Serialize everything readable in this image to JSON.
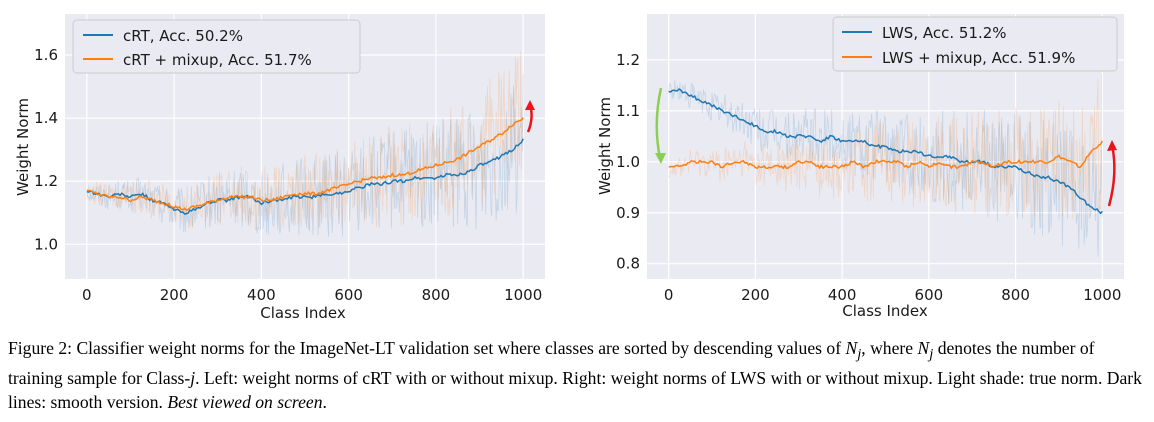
{
  "chart_data": [
    {
      "type": "line",
      "panel": "left",
      "xlabel": "Class Index",
      "ylabel": "Weight Norm",
      "xlim": [
        -50,
        1050
      ],
      "ylim": [
        0.89,
        1.73
      ],
      "xticks": [
        0,
        200,
        400,
        600,
        800,
        1000
      ],
      "xticklabels": [
        "0",
        "200",
        "400",
        "600",
        "800",
        "1000"
      ],
      "yticks": [
        1.0,
        1.2,
        1.4,
        1.6
      ],
      "yticklabels": [
        "1.0",
        "1.2",
        "1.4",
        "1.6"
      ],
      "grid": true,
      "legend": "top-left",
      "series": [
        {
          "name": "cRT, Acc. 50.2%",
          "color": "#1f77b4",
          "x": [
            0,
            25,
            50,
            75,
            100,
            125,
            150,
            175,
            200,
            225,
            250,
            275,
            300,
            325,
            350,
            375,
            400,
            425,
            450,
            475,
            500,
            525,
            550,
            575,
            600,
            625,
            650,
            675,
            700,
            725,
            750,
            775,
            800,
            825,
            850,
            875,
            900,
            925,
            950,
            975,
            1000
          ],
          "values": [
            1.17,
            1.16,
            1.15,
            1.16,
            1.15,
            1.16,
            1.14,
            1.13,
            1.11,
            1.1,
            1.11,
            1.13,
            1.14,
            1.14,
            1.15,
            1.15,
            1.13,
            1.14,
            1.14,
            1.15,
            1.15,
            1.15,
            1.16,
            1.16,
            1.17,
            1.18,
            1.19,
            1.19,
            1.2,
            1.2,
            1.21,
            1.21,
            1.21,
            1.22,
            1.22,
            1.23,
            1.25,
            1.26,
            1.28,
            1.3,
            1.33
          ]
        },
        {
          "name": "cRT  + mixup, Acc. 51.7%",
          "color": "#ff7f0e",
          "x": [
            0,
            25,
            50,
            75,
            100,
            125,
            150,
            175,
            200,
            225,
            250,
            275,
            300,
            325,
            350,
            375,
            400,
            425,
            450,
            475,
            500,
            525,
            550,
            575,
            600,
            625,
            650,
            675,
            700,
            725,
            750,
            775,
            800,
            825,
            850,
            875,
            900,
            925,
            950,
            975,
            1000
          ],
          "values": [
            1.17,
            1.16,
            1.15,
            1.15,
            1.14,
            1.15,
            1.14,
            1.13,
            1.12,
            1.11,
            1.12,
            1.13,
            1.14,
            1.15,
            1.15,
            1.15,
            1.14,
            1.14,
            1.15,
            1.16,
            1.16,
            1.16,
            1.17,
            1.18,
            1.19,
            1.2,
            1.21,
            1.21,
            1.22,
            1.22,
            1.23,
            1.24,
            1.25,
            1.26,
            1.27,
            1.29,
            1.31,
            1.33,
            1.35,
            1.38,
            1.4
          ]
        }
      ]
    },
    {
      "type": "line",
      "panel": "right",
      "xlabel": "Class Index",
      "ylabel": "Weight Norm",
      "xlim": [
        -50,
        1050
      ],
      "ylim": [
        0.77,
        1.29
      ],
      "xticks": [
        0,
        200,
        400,
        600,
        800,
        1000
      ],
      "xticklabels": [
        "0",
        "200",
        "400",
        "600",
        "800",
        "1000"
      ],
      "yticks": [
        0.8,
        0.9,
        1.0,
        1.1,
        1.2
      ],
      "yticklabels": [
        "0.8",
        "0.9",
        "1.0",
        "1.1",
        "1.2"
      ],
      "grid": true,
      "legend": "top-right",
      "series": [
        {
          "name": "LWS, Acc. 51.2%",
          "color": "#1f77b4",
          "x": [
            0,
            25,
            50,
            75,
            100,
            125,
            150,
            175,
            200,
            225,
            250,
            275,
            300,
            325,
            350,
            375,
            400,
            425,
            450,
            475,
            500,
            525,
            550,
            575,
            600,
            625,
            650,
            675,
            700,
            725,
            750,
            775,
            800,
            825,
            850,
            875,
            900,
            925,
            950,
            975,
            1000
          ],
          "values": [
            1.14,
            1.14,
            1.13,
            1.12,
            1.11,
            1.1,
            1.09,
            1.08,
            1.07,
            1.06,
            1.06,
            1.05,
            1.05,
            1.05,
            1.04,
            1.05,
            1.04,
            1.04,
            1.04,
            1.03,
            1.03,
            1.02,
            1.02,
            1.02,
            1.01,
            1.01,
            1.01,
            1.0,
            1.0,
            1.0,
            0.99,
            0.99,
            0.99,
            0.98,
            0.97,
            0.97,
            0.96,
            0.95,
            0.93,
            0.91,
            0.9
          ]
        },
        {
          "name": "LWS + mixup, Acc. 51.9%",
          "color": "#ff7f0e",
          "x": [
            0,
            25,
            50,
            75,
            100,
            125,
            150,
            175,
            200,
            225,
            250,
            275,
            300,
            325,
            350,
            375,
            400,
            425,
            450,
            475,
            500,
            525,
            550,
            575,
            600,
            625,
            650,
            675,
            700,
            725,
            750,
            775,
            800,
            825,
            850,
            875,
            900,
            925,
            950,
            975,
            1000
          ],
          "values": [
            0.99,
            0.99,
            1.0,
            1.0,
            1.0,
            0.99,
            1.0,
            1.0,
            0.99,
            0.99,
            0.99,
            0.99,
            1.0,
            1.0,
            0.99,
            0.99,
            0.99,
            1.0,
            0.99,
            1.0,
            1.0,
            1.0,
            0.99,
            1.0,
            0.99,
            1.0,
            0.99,
            0.99,
            1.0,
            1.0,
            0.99,
            1.0,
            1.0,
            1.0,
            1.0,
            1.0,
            1.01,
            1.0,
            0.99,
            1.02,
            1.04
          ]
        }
      ]
    }
  ],
  "caption": {
    "figure_label": "Figure 2:",
    "text_part1": "Classifier weight norms for the ImageNet-LT validation set where classes are sorted by descending values of ",
    "var_n": "N",
    "sub_j": "j",
    "text_part2": ", where ",
    "text_part3": " denotes the number of training sample for Class-",
    "var_j": "j",
    "text_part4": ". Left: weight norms of cRT with or without mixup. Right: weight norms of LWS with or without mixup. Light shade: true norm. Dark lines: smooth version. ",
    "italic": "Best viewed on screen",
    "end": "."
  }
}
